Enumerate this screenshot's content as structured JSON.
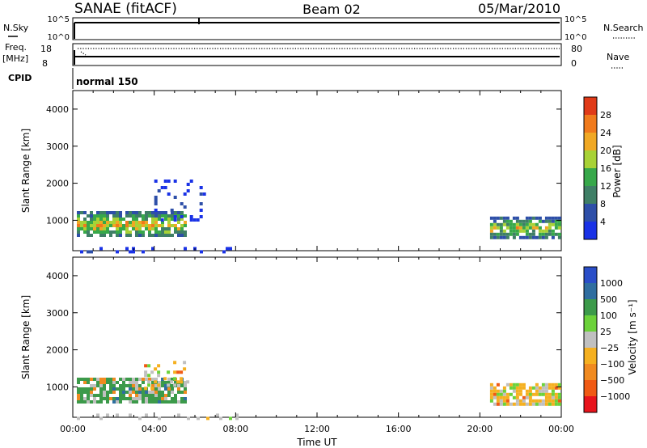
{
  "header": {
    "station": "SANAE (fitACF)",
    "beam": "Beam 02",
    "date": "05/Mar/2010"
  },
  "strip_labels": {
    "nsky": "N.Sky",
    "nsearch": "N.Search",
    "freq": "Freq.",
    "freq_unit": "[MHz]",
    "nave": "Nave",
    "cpid": "CPID",
    "cpid_value": "normal 150",
    "nsky_ticks": [
      "10^5",
      "10^0"
    ],
    "nsearch_ticks": [
      "10^5",
      "10^0"
    ],
    "freq_ticks": [
      "18",
      "8"
    ],
    "nave_ticks": [
      "80",
      "0"
    ]
  },
  "chart_data": [
    {
      "type": "heatmap",
      "title": "",
      "xlabel": "",
      "ylabel": "Slant Range [km]",
      "xlim": [
        0,
        24
      ],
      "ylim": [
        180,
        4500
      ],
      "yticks": [
        1000,
        2000,
        3000,
        4000
      ],
      "colorbar": {
        "label": "Power [dB]",
        "ticks": [
          4,
          8,
          12,
          16,
          20,
          24,
          28
        ],
        "colors": [
          "#1a32e6",
          "#2e4fa8",
          "#3f7f66",
          "#37a84a",
          "#a8d236",
          "#f0a824",
          "#f07a1c",
          "#e03a18"
        ]
      },
      "regions": [
        {
          "t_start": 0.2,
          "t_end": 5.6,
          "range_min": 600,
          "range_max": 1250,
          "peak_power": 24
        },
        {
          "t_start": 4.0,
          "t_end": 6.4,
          "range_min": 1000,
          "range_max": 2100,
          "peak_power": 6
        },
        {
          "t_start": 20.5,
          "t_end": 23.9,
          "range_min": 560,
          "range_max": 1100,
          "peak_power": 22
        },
        {
          "t_start": 0.2,
          "t_end": 8.0,
          "range_min": 180,
          "range_max": 280,
          "peak_power": 6
        }
      ]
    },
    {
      "type": "heatmap",
      "title": "",
      "xlabel": "Time UT",
      "ylabel": "Slant Range [km]",
      "xlim": [
        0,
        24
      ],
      "ylim": [
        180,
        4500
      ],
      "xticks": [
        "00:00",
        "04:00",
        "08:00",
        "12:00",
        "16:00",
        "20:00",
        "00:00"
      ],
      "yticks": [
        1000,
        2000,
        3000,
        4000
      ],
      "colorbar": {
        "label": "Velocity [m s⁻¹]",
        "ticks": [
          "1000",
          "500",
          "100",
          "25",
          "−25",
          "−100",
          "−500",
          "−1000"
        ],
        "colors": [
          "#2a4ec8",
          "#2f6ea0",
          "#3c9a4a",
          "#6cd23a",
          "#c0c0c0",
          "#f5b020",
          "#f08a20",
          "#f05a14",
          "#e8141c"
        ]
      },
      "regions": [
        {
          "t_start": 0.2,
          "t_end": 5.6,
          "range_min": 600,
          "range_max": 1250,
          "dominant_velocity": 100
        },
        {
          "t_start": 3.5,
          "t_end": 5.6,
          "range_min": 1000,
          "range_max": 1700,
          "dominant_velocity": -100
        },
        {
          "t_start": 20.5,
          "t_end": 23.9,
          "range_min": 560,
          "range_max": 1100,
          "dominant_velocity": -100
        },
        {
          "t_start": 0.2,
          "t_end": 8.0,
          "range_min": 180,
          "range_max": 280,
          "dominant_velocity": 0
        }
      ]
    }
  ]
}
